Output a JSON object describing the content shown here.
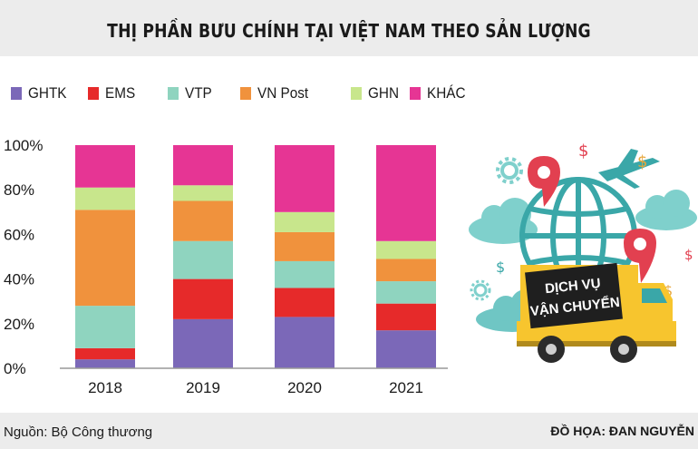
{
  "title": "THỊ PHẦN BƯU CHÍNH TẠI VIỆT NAM THEO SẢN LƯỢNG",
  "source": "Nguồn: Bộ Công thương",
  "credit": "ĐỒ HỌA: ĐAN NGUYỄN",
  "illustration": {
    "line1": "DỊCH VỤ",
    "line2": "VẬN CHUYỂN"
  },
  "chart_data": {
    "type": "bar",
    "stacked": true,
    "categories": [
      "2018",
      "2019",
      "2020",
      "2021"
    ],
    "y_ticks": [
      "0%",
      "20%",
      "40%",
      "60%",
      "80%",
      "100%"
    ],
    "ylim": [
      0,
      100
    ],
    "series": [
      {
        "name": "GHTK",
        "color": "#7b68b8",
        "values": [
          4,
          22,
          23,
          17
        ]
      },
      {
        "name": "EMS",
        "color": "#e62a2a",
        "values": [
          5,
          18,
          13,
          12
        ]
      },
      {
        "name": "VTP",
        "color": "#8fd4bf",
        "values": [
          19,
          17,
          12,
          10
        ]
      },
      {
        "name": "VN Post",
        "color": "#f0923d",
        "values": [
          43,
          18,
          13,
          10
        ]
      },
      {
        "name": "GHN",
        "color": "#c8e68c",
        "values": [
          10,
          7,
          9,
          8
        ]
      },
      {
        "name": "KHÁC",
        "color": "#e63594",
        "values": [
          19,
          18,
          30,
          43
        ]
      }
    ]
  }
}
